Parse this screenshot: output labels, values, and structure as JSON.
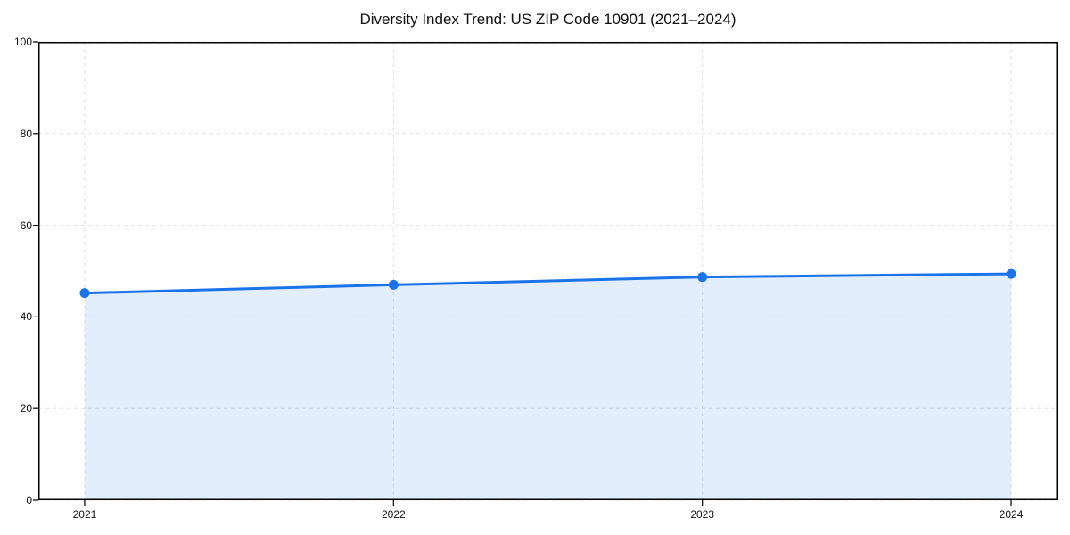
{
  "chart_data": {
    "type": "area",
    "title": "Diversity Index Trend: US ZIP Code 10901 (2021–2024)",
    "x": [
      2021,
      2022,
      2023,
      2024
    ],
    "x_tick_labels": [
      "2021",
      "2022",
      "2023",
      "2024"
    ],
    "series": [
      {
        "name": "Diversity Index",
        "values": [
          45.2,
          47.0,
          48.7,
          49.4
        ]
      }
    ],
    "xlabel": "",
    "ylabel": "",
    "ylim": [
      0,
      100
    ],
    "y_ticks": [
      0,
      20,
      40,
      60,
      80,
      100
    ],
    "grid": "dashed, both axes",
    "legend": "none",
    "x_margin_fraction": 0.05,
    "colors": {
      "line": "#1a73e8",
      "marker": "#1a73e8",
      "fill": "rgba(26,115,232,0.12)",
      "grid": "#e0e0e0",
      "axis_border": "#000000",
      "text": "#111111",
      "background": "#ffffff"
    }
  }
}
